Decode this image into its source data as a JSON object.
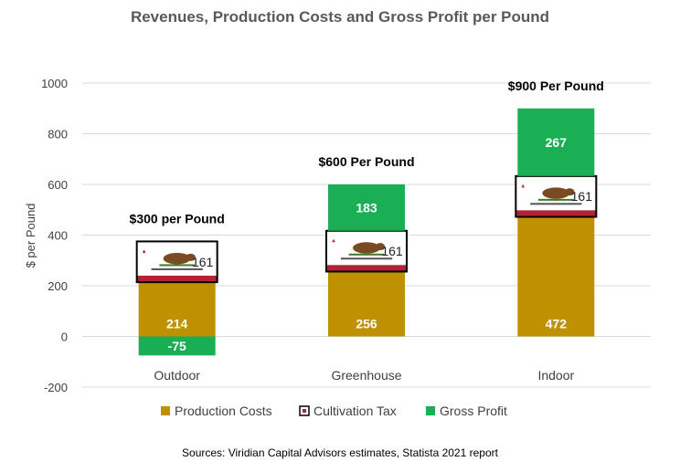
{
  "chart_data": {
    "type": "bar",
    "stacked": true,
    "title": "Revenues, Production Costs and Gross Profit per Pound",
    "ylabel": "$ per Pound",
    "xlabel": "",
    "ylim": [
      -200,
      1000
    ],
    "yticks": [
      -200,
      0,
      200,
      400,
      600,
      800,
      1000
    ],
    "grid": true,
    "legend_position": "bottom",
    "categories": [
      "Outdoor",
      "Greenhouse",
      "Indoor"
    ],
    "series": [
      {
        "name": "Production Costs",
        "color": "#bf9000",
        "values": [
          214,
          256,
          472
        ],
        "labels": [
          "214",
          "256",
          "472"
        ]
      },
      {
        "name": "Cultivation Tax",
        "color": "#ffffff",
        "values": [
          161,
          161,
          161
        ],
        "labels": [
          "161",
          "161",
          "161"
        ],
        "icon": "california-flag-icon"
      },
      {
        "name": "Gross Profit",
        "color": "#1aae55",
        "values": [
          -75,
          183,
          267
        ],
        "labels": [
          "-75",
          "183",
          "267"
        ]
      }
    ],
    "annotations": [
      "$300 per Pound",
      "$600 Per Pound",
      "$900 Per Pound"
    ],
    "source": "Sources:  Viridian Capital Advisors estimates, Statista 2021 report"
  }
}
